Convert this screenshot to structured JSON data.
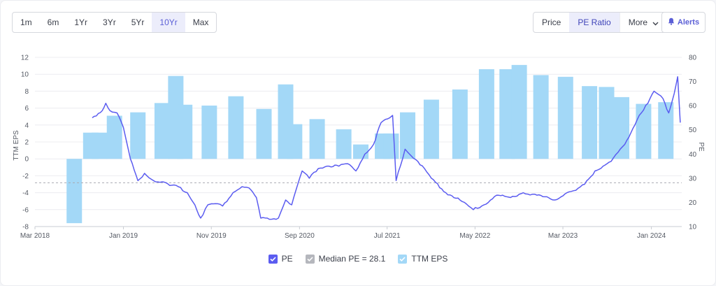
{
  "toolbar": {
    "ranges": [
      "1m",
      "6m",
      "1Yr",
      "3Yr",
      "5Yr",
      "10Yr",
      "Max"
    ],
    "active_range": "10Yr",
    "modes": [
      "Price",
      "PE Ratio"
    ],
    "active_mode": "PE Ratio",
    "more_label": "More",
    "alerts_label": "Alerts"
  },
  "colors": {
    "pe_line": "#5b5cf0",
    "eps_bar": "#a3d8f7",
    "median_line": "#a9abb2",
    "grid": "#ececf0",
    "tick_text": "#555a64"
  },
  "chart_data": {
    "type": "bar+line",
    "x_tick_labels": [
      "Mar 2018",
      "Jan 2019",
      "Nov 2019",
      "Sep 2020",
      "Jul 2021",
      "May 2022",
      "Mar 2023",
      "Jan 2024"
    ],
    "left_axis": {
      "label": "TTM EPS",
      "ticks": [
        12,
        10,
        8,
        6,
        4,
        2,
        0,
        -2,
        -4,
        -6,
        -8
      ],
      "range": [
        -8,
        12
      ]
    },
    "right_axis": {
      "label": "PE",
      "ticks": [
        80,
        70,
        60,
        50,
        40,
        30,
        20,
        10
      ],
      "range": [
        10,
        80
      ]
    },
    "eps_bars": [
      {
        "date": "2018-07-15",
        "value": -7.6
      },
      {
        "date": "2018-09-10",
        "value": 3.1
      },
      {
        "date": "2018-10-10",
        "value": 3.1
      },
      {
        "date": "2018-12-01",
        "value": 5.1
      },
      {
        "date": "2019-02-20",
        "value": 5.5
      },
      {
        "date": "2019-05-15",
        "value": 6.6
      },
      {
        "date": "2019-07-01",
        "value": 9.8
      },
      {
        "date": "2019-08-01",
        "value": 6.4
      },
      {
        "date": "2019-10-25",
        "value": 6.3
      },
      {
        "date": "2020-01-25",
        "value": 7.4
      },
      {
        "date": "2020-05-01",
        "value": 5.9
      },
      {
        "date": "2020-07-15",
        "value": 8.8
      },
      {
        "date": "2020-08-15",
        "value": 4.1
      },
      {
        "date": "2020-11-01",
        "value": 4.7
      },
      {
        "date": "2021-02-01",
        "value": 3.5
      },
      {
        "date": "2021-04-01",
        "value": 1.7
      },
      {
        "date": "2021-06-15",
        "value": 3.0
      },
      {
        "date": "2021-07-15",
        "value": 3.0
      },
      {
        "date": "2021-09-10",
        "value": 5.5
      },
      {
        "date": "2021-12-01",
        "value": 7.0
      },
      {
        "date": "2022-03-10",
        "value": 8.2
      },
      {
        "date": "2022-06-10",
        "value": 10.6
      },
      {
        "date": "2022-08-20",
        "value": 10.6
      },
      {
        "date": "2022-10-01",
        "value": 11.1
      },
      {
        "date": "2022-12-15",
        "value": 9.9
      },
      {
        "date": "2023-03-10",
        "value": 9.7
      },
      {
        "date": "2023-06-01",
        "value": 8.6
      },
      {
        "date": "2023-07-30",
        "value": 8.5
      },
      {
        "date": "2023-09-20",
        "value": 7.3
      },
      {
        "date": "2023-12-05",
        "value": 6.5
      },
      {
        "date": "2024-02-20",
        "value": 6.7
      }
    ],
    "pe_series": {
      "name": "PE",
      "points": [
        [
          "2018-09-15",
          55
        ],
        [
          "2018-10-20",
          58
        ],
        [
          "2018-11-01",
          61
        ],
        [
          "2018-11-15",
          58
        ],
        [
          "2018-12-10",
          57
        ],
        [
          "2019-01-01",
          51
        ],
        [
          "2019-01-25",
          38
        ],
        [
          "2019-02-20",
          29
        ],
        [
          "2019-03-15",
          32
        ],
        [
          "2019-04-15",
          29
        ],
        [
          "2019-05-15",
          28.5
        ],
        [
          "2019-06-10",
          27
        ],
        [
          "2019-07-10",
          26.5
        ],
        [
          "2019-08-10",
          24
        ],
        [
          "2019-09-05",
          19
        ],
        [
          "2019-09-25",
          13.5
        ],
        [
          "2019-10-20",
          19
        ],
        [
          "2019-11-15",
          19.5
        ],
        [
          "2019-12-10",
          18.5
        ],
        [
          "2020-01-15",
          24
        ],
        [
          "2020-02-15",
          26.5
        ],
        [
          "2020-03-10",
          26
        ],
        [
          "2020-04-05",
          22
        ],
        [
          "2020-04-20",
          13.5
        ],
        [
          "2020-05-20",
          13
        ],
        [
          "2020-06-20",
          13.5
        ],
        [
          "2020-07-15",
          21
        ],
        [
          "2020-08-05",
          19
        ],
        [
          "2020-09-10",
          33
        ],
        [
          "2020-10-05",
          30
        ],
        [
          "2020-11-05",
          34
        ],
        [
          "2020-12-05",
          35
        ],
        [
          "2021-01-15",
          35
        ],
        [
          "2021-02-15",
          36
        ],
        [
          "2021-03-15",
          33
        ],
        [
          "2021-04-15",
          40
        ],
        [
          "2021-05-15",
          44
        ],
        [
          "2021-06-10",
          53
        ],
        [
          "2021-07-10",
          55
        ],
        [
          "2021-07-20",
          56
        ],
        [
          "2021-08-01",
          29
        ],
        [
          "2021-09-01",
          42
        ],
        [
          "2021-10-15",
          37
        ],
        [
          "2021-12-01",
          30
        ],
        [
          "2022-01-20",
          24
        ],
        [
          "2022-03-10",
          21
        ],
        [
          "2022-04-25",
          17
        ],
        [
          "2022-06-01",
          19
        ],
        [
          "2022-07-15",
          23
        ],
        [
          "2022-09-01",
          22
        ],
        [
          "2022-10-15",
          24
        ],
        [
          "2022-12-01",
          23
        ],
        [
          "2023-02-01",
          21
        ],
        [
          "2023-03-15",
          24
        ],
        [
          "2023-04-15",
          25
        ],
        [
          "2023-05-15",
          27.5
        ],
        [
          "2023-06-20",
          33
        ],
        [
          "2023-08-15",
          37
        ],
        [
          "2023-10-01",
          44
        ],
        [
          "2023-11-20",
          56
        ],
        [
          "2023-12-20",
          61
        ],
        [
          "2024-01-10",
          66
        ],
        [
          "2024-02-10",
          63
        ],
        [
          "2024-03-01",
          57
        ],
        [
          "2024-03-20",
          65
        ],
        [
          "2024-04-01",
          72
        ],
        [
          "2024-04-10",
          53
        ]
      ]
    },
    "median_pe": 28.1,
    "legend": [
      {
        "label": "PE",
        "checked": true
      },
      {
        "label": "Median PE = 28.1",
        "checked": true
      },
      {
        "label": "TTM EPS",
        "checked": true
      }
    ]
  }
}
